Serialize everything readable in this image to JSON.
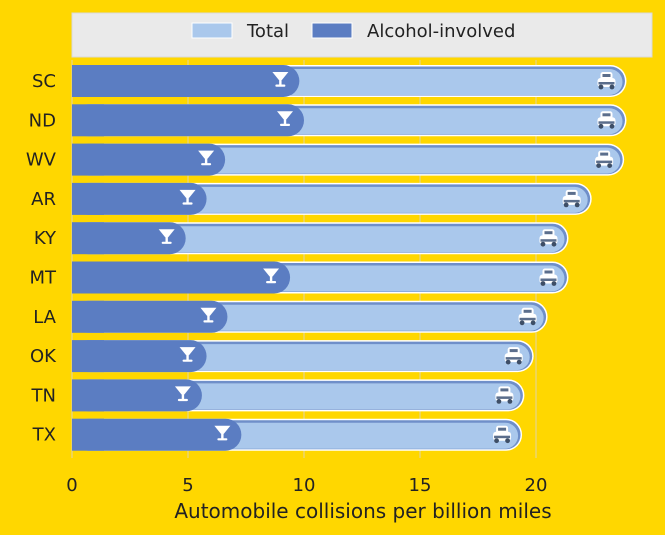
{
  "chart_data": {
    "type": "bar",
    "orientation": "horizontal",
    "categories": [
      "SC",
      "ND",
      "WV",
      "AR",
      "KY",
      "MT",
      "LA",
      "OK",
      "TN",
      "TX"
    ],
    "series": [
      {
        "name": "Total",
        "values": [
          23.9,
          23.9,
          23.8,
          22.4,
          21.4,
          21.4,
          20.5,
          19.9,
          19.5,
          19.4
        ],
        "marker_icon": "car-icon"
      },
      {
        "name": "Alcohol-involved",
        "values": [
          9.8,
          10.0,
          6.6,
          5.8,
          4.9,
          9.4,
          6.7,
          5.8,
          5.6,
          7.3
        ],
        "marker_icon": "cocktail-glass-icon"
      }
    ],
    "xlabel": "Automobile collisions per billion miles",
    "ylabel": "",
    "xlim": [
      0,
      25
    ],
    "xticks": [
      0,
      5,
      10,
      15,
      20
    ],
    "grid": true,
    "legend_position": "top",
    "colors": {
      "background": "#FFD700",
      "total": "#AAC8EC",
      "alcohol": "#5B7DC2",
      "legend_box": "#EAEAEA",
      "grid": "#E6D48A",
      "text": "#222222"
    }
  }
}
